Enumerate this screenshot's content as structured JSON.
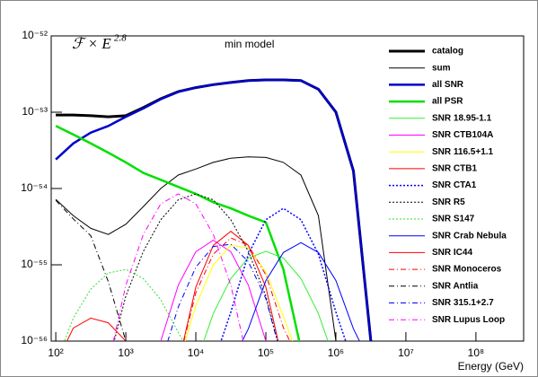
{
  "chart_data": {
    "type": "line",
    "formula": "ℱ × E",
    "formula_exponent": "2.8",
    "subtitle": "min model",
    "x_label": "Energy (GeV)",
    "log_x": true,
    "log_y": true,
    "xlim": [
      86,
      480000000
    ],
    "ylim": [
      1e-56,
      1e-52
    ],
    "xticks": [
      {
        "value": 100,
        "label": "10²"
      },
      {
        "value": 1000,
        "label": "10³"
      },
      {
        "value": 10000,
        "label": "10⁴"
      },
      {
        "value": 100000,
        "label": "10⁵"
      },
      {
        "value": 1000000,
        "label": "10⁶"
      },
      {
        "value": 10000000,
        "label": "10⁷"
      },
      {
        "value": 100000000,
        "label": "10⁸"
      }
    ],
    "yticks": [
      {
        "value": 1e-56,
        "label": "10⁻⁵⁶"
      },
      {
        "value": 1e-55,
        "label": "10⁻⁵⁵"
      },
      {
        "value": 1e-54,
        "label": "10⁻⁵⁴"
      },
      {
        "value": 1e-53,
        "label": "10⁻⁵³"
      },
      {
        "value": 1e-52,
        "label": "10⁻⁵²"
      }
    ],
    "x": [
      100,
      177.8,
      316.2,
      562.3,
      1000,
      1778,
      3162,
      5623,
      10000,
      17783,
      31623,
      56234,
      100000,
      177828,
      316228,
      562341,
      1000000,
      1778279,
      3162278
    ],
    "series": [
      {
        "name": "catalog",
        "color": "#000000",
        "width": 3,
        "dash": "solid",
        "values": [
          9.2e-54,
          9.2e-54,
          9e-54,
          8.7e-54,
          9e-54,
          1.15e-53,
          1.5e-53,
          1.86e-53,
          2.1e-53,
          2.3e-53,
          2.45e-53,
          2.6e-53,
          2.65e-53,
          2.65e-53,
          2.6e-53,
          2e-53,
          1e-53,
          1.7e-54,
          1e-56
        ]
      },
      {
        "name": "sum",
        "color": "#000000",
        "width": 1,
        "dash": "solid",
        "values": [
          7.2e-55,
          4.4e-55,
          3e-55,
          2.5e-55,
          3.4e-55,
          5.8e-55,
          1e-54,
          1.5e-54,
          1.8e-54,
          2.2e-54,
          2.5e-54,
          2.6e-54,
          2.55e-54,
          2.2e-54,
          1.5e-54,
          4.4e-55,
          1e-56,
          null,
          null
        ]
      },
      {
        "name": "all SNR",
        "color": "#0000cc",
        "width": 2.5,
        "dash": "solid",
        "values": [
          2.4e-54,
          3.9e-54,
          5.4e-54,
          6.6e-54,
          8.7e-54,
          1.12e-53,
          1.48e-53,
          1.85e-53,
          2.1e-53,
          2.3e-53,
          2.45e-53,
          2.6e-53,
          2.65e-53,
          2.65e-53,
          2.6e-53,
          2e-53,
          1e-53,
          1.7e-54,
          1e-56
        ]
      },
      {
        "name": "all PSR",
        "color": "#00e000",
        "width": 2.5,
        "dash": "solid",
        "values": [
          6.6e-54,
          5.1e-54,
          3.9e-54,
          2.95e-54,
          2.2e-54,
          1.6e-54,
          1.3e-54,
          1.05e-54,
          8.5e-55,
          6.6e-55,
          5.5e-55,
          4.4e-55,
          3.6e-55,
          8.7e-56,
          8e-57,
          null,
          null,
          null,
          null
        ]
      },
      {
        "name": "SNR 18.95-1.1",
        "color": "#33ee33",
        "width": 1,
        "dash": "solid",
        "values": [
          null,
          null,
          null,
          null,
          null,
          null,
          null,
          null,
          5e-57,
          2.3e-56,
          6.6e-56,
          1.23e-55,
          1.5e-55,
          1.23e-55,
          6.6e-56,
          2.3e-56,
          5e-57,
          null,
          null
        ]
      },
      {
        "name": "SNR CTB104A",
        "color": "#ff00ff",
        "width": 1,
        "dash": "solid",
        "values": [
          null,
          null,
          null,
          null,
          null,
          5e-57,
          1e-56,
          5.4e-56,
          1.48e-55,
          2.1e-55,
          1.48e-55,
          5.4e-56,
          1e-56,
          5e-57,
          null,
          null,
          null,
          null,
          null
        ]
      },
      {
        "name": "SNR 116.5+1.1",
        "color": "#ffff00",
        "width": 1,
        "dash": "solid",
        "values": [
          null,
          null,
          null,
          null,
          null,
          null,
          null,
          5e-57,
          2.9e-56,
          1e-55,
          1.8e-55,
          1.66e-55,
          8.1e-56,
          2.1e-56,
          5e-57,
          null,
          null,
          null,
          null
        ]
      },
      {
        "name": "SNR CTB1",
        "color": "#ff0000",
        "width": 1,
        "dash": "solid",
        "values": [
          null,
          null,
          null,
          null,
          null,
          null,
          null,
          5e-57,
          5.1e-56,
          1.8e-55,
          2.75e-55,
          1.8e-55,
          5.1e-56,
          5e-57,
          null,
          null,
          null,
          null,
          null
        ]
      },
      {
        "name": "SNR CTA1",
        "color": "#0000ff",
        "width": 1.5,
        "dash": "dotted",
        "values": [
          null,
          null,
          null,
          null,
          null,
          null,
          null,
          null,
          null,
          5e-57,
          2.4e-56,
          1.38e-55,
          3.9e-55,
          5.5e-55,
          3.9e-55,
          1.38e-55,
          2.4e-56,
          5e-57,
          null
        ]
      },
      {
        "name": "SNR R5",
        "color": "#000000",
        "width": 1,
        "dash": "dotted",
        "values": [
          null,
          null,
          null,
          5e-57,
          3.9e-56,
          1.5e-55,
          3.9e-55,
          7.1e-55,
          8.5e-55,
          7.1e-55,
          3.9e-55,
          1.5e-55,
          3.9e-56,
          5e-57,
          null,
          null,
          null,
          null,
          null
        ]
      },
      {
        "name": "SNR S147",
        "color": "#33dd33",
        "width": 1,
        "dash": "dotted",
        "values": [
          5e-57,
          2e-56,
          4.8e-56,
          7.8e-56,
          8.7e-56,
          6.6e-56,
          3.5e-56,
          1.3e-56,
          5e-57,
          null,
          null,
          null,
          null,
          null,
          null,
          null,
          null,
          null,
          null
        ]
      },
      {
        "name": "SNR Crab Nebula",
        "color": "#0000ff",
        "width": 1,
        "dash": "solid",
        "values": [
          null,
          null,
          null,
          null,
          null,
          null,
          null,
          null,
          null,
          null,
          5e-57,
          1.45e-56,
          6.2e-56,
          1.45e-55,
          1.95e-55,
          1.45e-55,
          6.2e-56,
          1.45e-56,
          5e-57
        ]
      },
      {
        "name": "SNR IC44",
        "color": "#ff0000",
        "width": 1,
        "dash": "solid",
        "values": [
          5e-57,
          1.48e-56,
          2e-56,
          1.74e-56,
          1e-56,
          5e-57,
          null,
          null,
          null,
          null,
          null,
          null,
          null,
          null,
          null,
          null,
          null,
          null,
          null
        ]
      },
      {
        "name": "SNR Monoceros",
        "color": "#ff0000",
        "width": 1,
        "dash": "dashdot",
        "values": [
          null,
          null,
          null,
          null,
          null,
          null,
          null,
          5e-57,
          4.3e-56,
          1.38e-55,
          2.25e-55,
          1.8e-55,
          7.4e-56,
          1.5e-56,
          5e-57,
          null,
          null,
          null,
          null
        ]
      },
      {
        "name": "SNR Antlia",
        "color": "#000000",
        "width": 1,
        "dash": "dashdot",
        "values": [
          7e-55,
          4e-55,
          2.4e-55,
          6e-56,
          1e-56,
          5e-57,
          null,
          null,
          null,
          null,
          null,
          null,
          null,
          null,
          null,
          null,
          null,
          null,
          null
        ]
      },
      {
        "name": "SNR 315.1+2.7",
        "color": "#0000ff",
        "width": 1,
        "dash": "dashdot",
        "values": [
          null,
          null,
          null,
          null,
          null,
          null,
          5e-57,
          2.8e-56,
          9.3e-56,
          1.74e-55,
          1.86e-55,
          1.1e-55,
          3.6e-56,
          5e-57,
          null,
          null,
          null,
          null,
          null
        ]
      },
      {
        "name": "SNR Lupus Loop",
        "color": "#ff00ff",
        "width": 1,
        "dash": "dashdot",
        "values": [
          null,
          null,
          null,
          5e-57,
          5.4e-56,
          2.5e-55,
          6.3e-55,
          8.5e-55,
          6.3e-55,
          2.5e-55,
          5.4e-56,
          5e-57,
          null,
          null,
          null,
          null,
          null,
          null,
          null
        ]
      }
    ]
  }
}
